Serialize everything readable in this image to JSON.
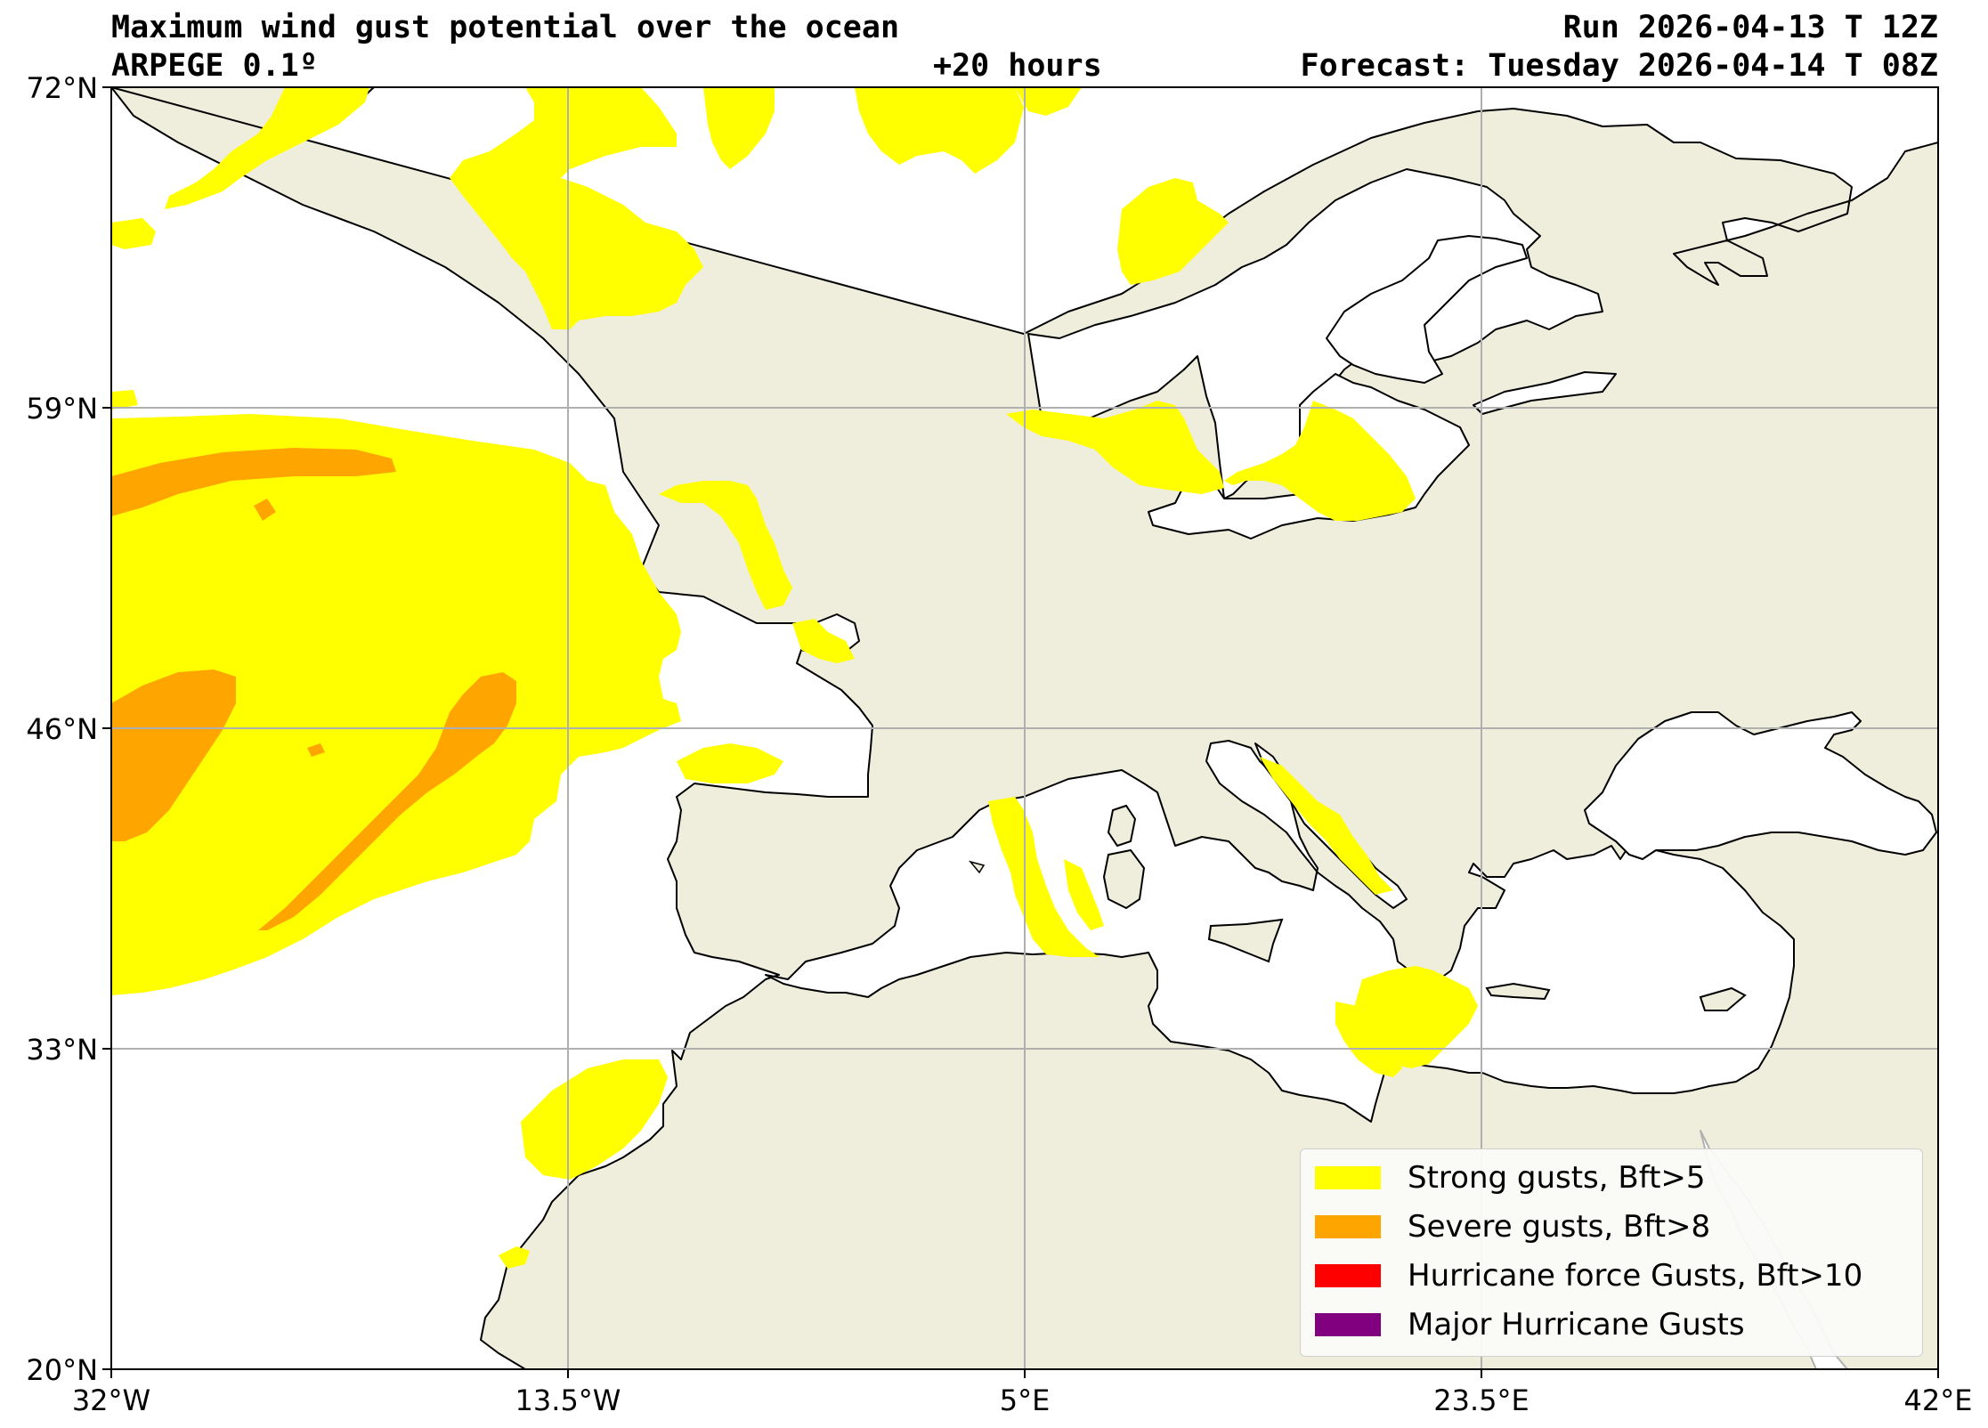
{
  "header": {
    "title": "Maximum wind gust potential over the ocean",
    "model": "ARPEGE 0.1º",
    "lead": "+20 hours",
    "run": "Run 2026-04-13 T 12Z",
    "forecast": "Forecast: Tuesday 2026-04-14 T 08Z"
  },
  "axes": {
    "lon_labels": [
      "32°W",
      "13.5°W",
      "5°E",
      "23.5°E",
      "42°E"
    ],
    "lat_labels": [
      "72°N",
      "59°N",
      "46°N",
      "33°N",
      "20°N"
    ],
    "lon_range": [
      -32,
      42
    ],
    "lat_range": [
      20,
      72
    ]
  },
  "legend": {
    "items": [
      {
        "label": "Strong gusts, Bft>5",
        "color": "#ffff00"
      },
      {
        "label": "Severe gusts, Bft>8",
        "color": "#ffa500"
      },
      {
        "label": "Hurricane force Gusts, Bft>10",
        "color": "#ff0000"
      },
      {
        "label": "Major Hurricane Gusts",
        "color": "#800080"
      }
    ]
  },
  "colors": {
    "land": "#efeedc",
    "ocean": "#ffffff",
    "strong": "#ffff00",
    "severe": "#ffa500",
    "grid": "#b0b0b0"
  }
}
